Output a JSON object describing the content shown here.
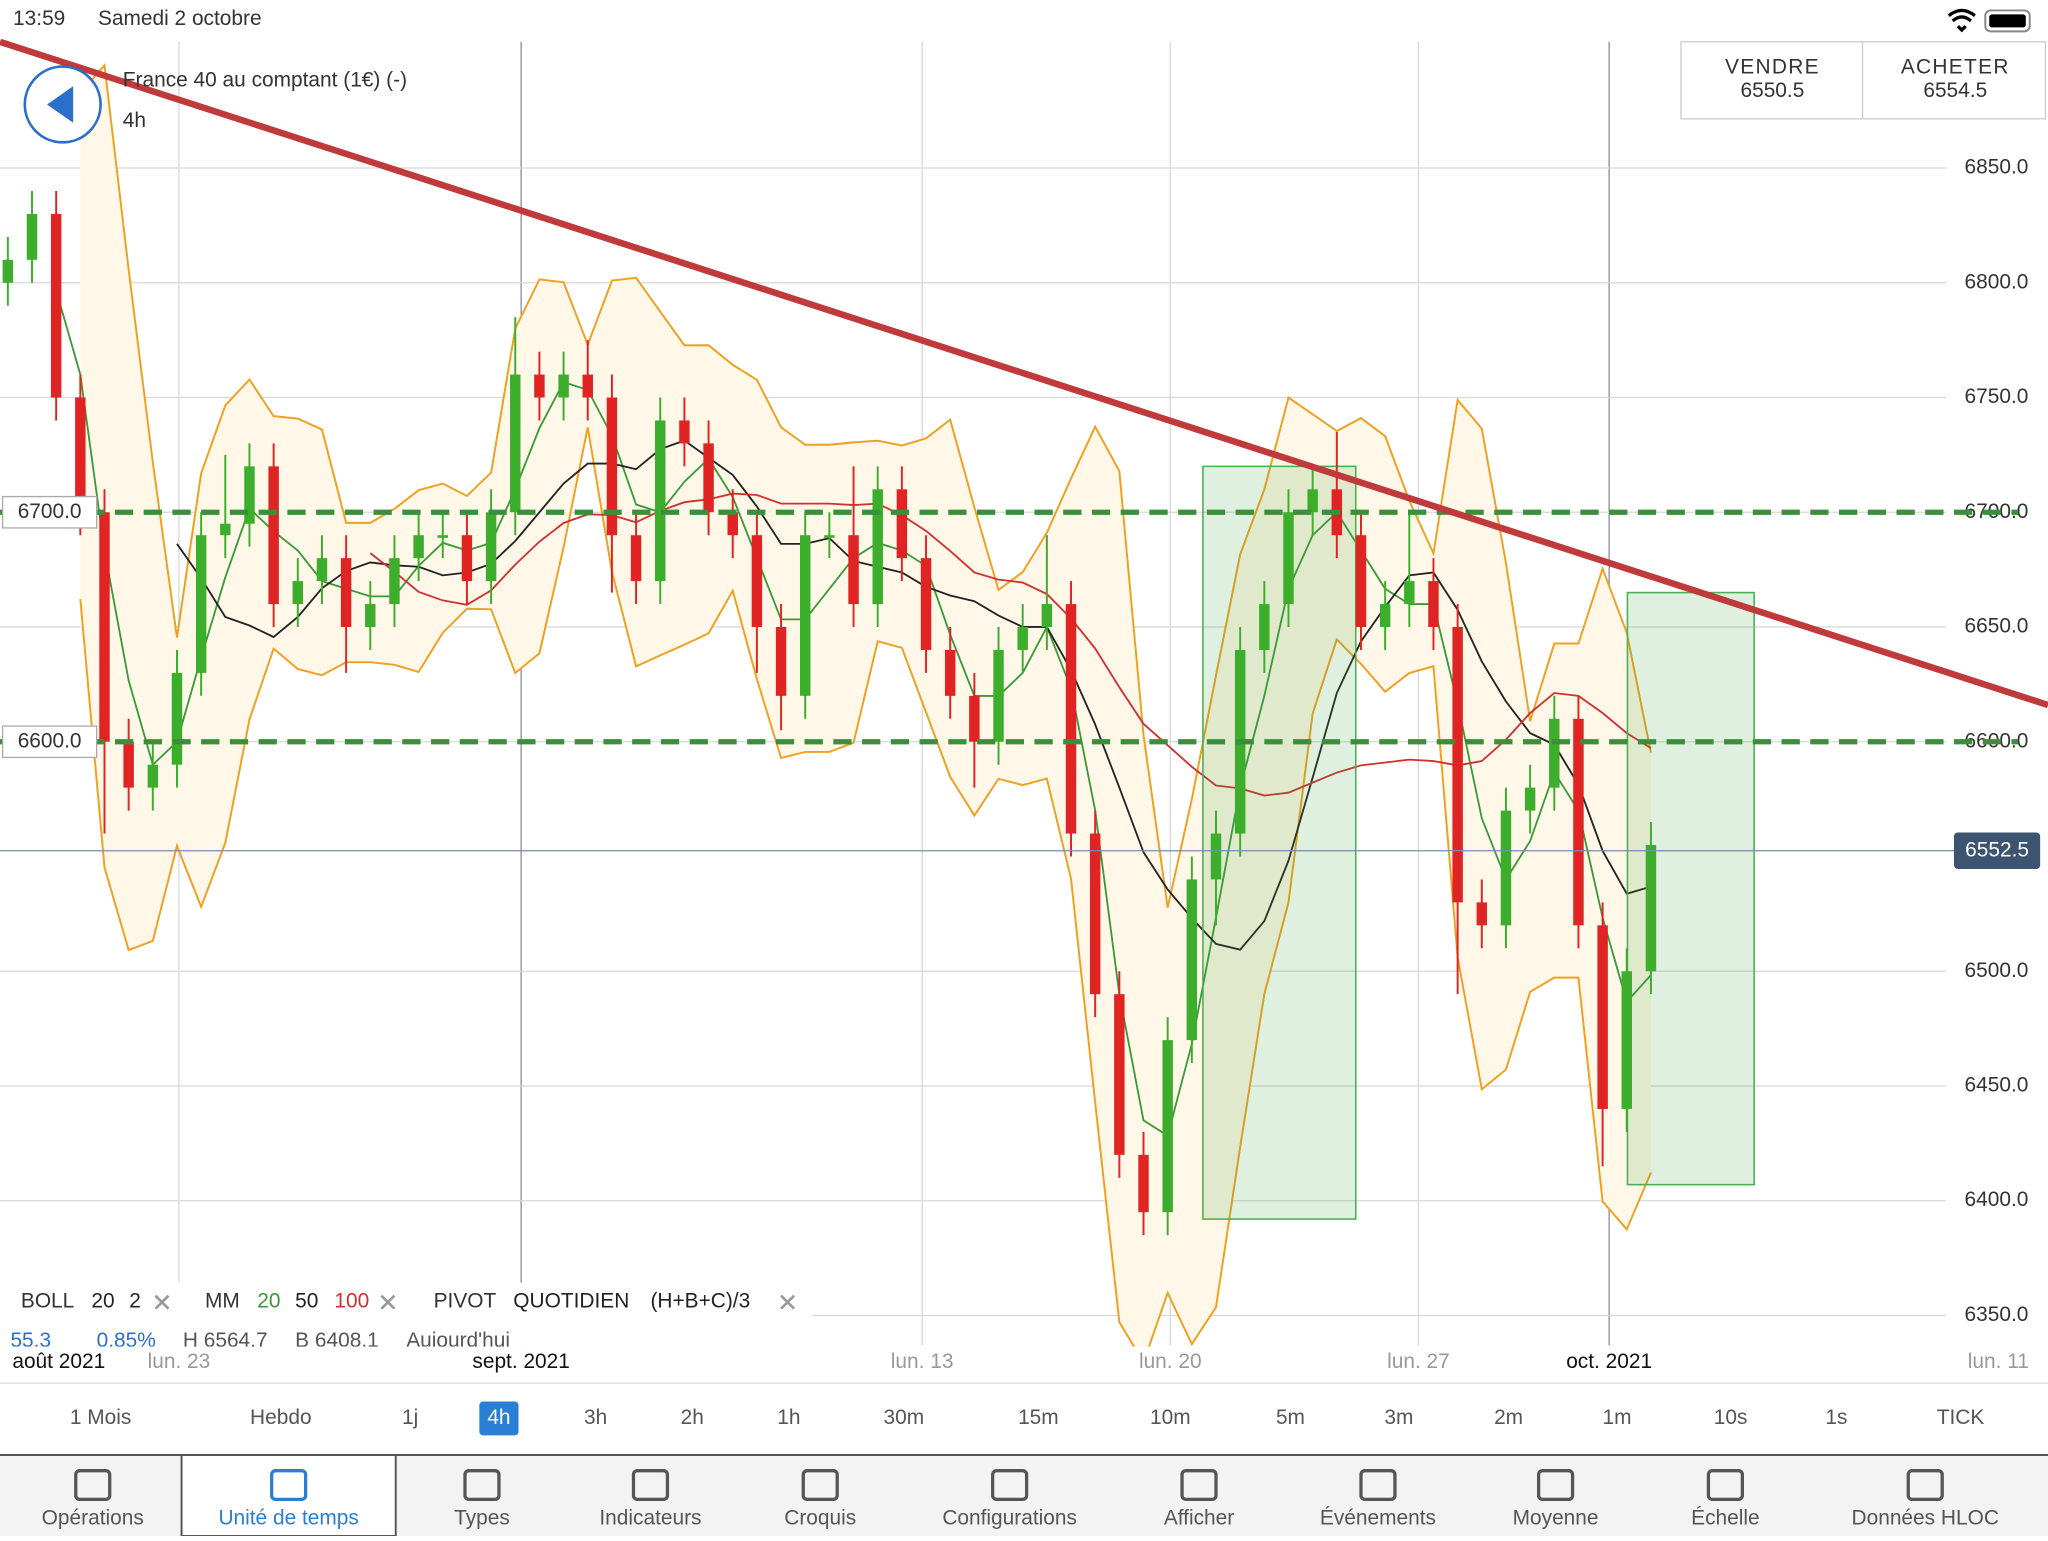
{
  "status_bar": {
    "time": "13:59",
    "date": "Samedi 2 octobre"
  },
  "header": {
    "instrument": "France 40 au comptant (1€) (-)",
    "timeframe": "4h"
  },
  "quote": {
    "sell_label": "VENDRE",
    "sell": 6550.5,
    "buy_label": "ACHETER",
    "buy": 6554.5
  },
  "chart_data": {
    "type": "candlestick",
    "open": [
      6800,
      6810,
      6830,
      6750,
      6700,
      6600,
      6580,
      6590,
      6630,
      6690,
      6695,
      6720,
      6660,
      6670,
      6680,
      6650,
      6660,
      6680,
      6690,
      6690,
      6670,
      6700,
      6760,
      6750,
      6760,
      6750,
      6690,
      6670,
      6740,
      6730,
      6700,
      6690,
      6650,
      6620,
      6690,
      6690,
      6660,
      6710,
      6680,
      6640,
      6620,
      6600,
      6640,
      6650,
      6660,
      6560,
      6490,
      6420,
      6395,
      6470,
      6540,
      6560,
      6640,
      6660,
      6700,
      6710,
      6690,
      6650,
      6660,
      6670,
      6650,
      6530,
      6520,
      6570,
      6580,
      6610,
      6520,
      6440,
      6500
    ],
    "high": [
      6820,
      6840,
      6840,
      6760,
      6710,
      6610,
      6600,
      6640,
      6700,
      6725,
      6730,
      6730,
      6680,
      6690,
      6690,
      6670,
      6690,
      6700,
      6700,
      6700,
      6710,
      6785,
      6770,
      6770,
      6775,
      6760,
      6700,
      6750,
      6750,
      6740,
      6710,
      6700,
      6660,
      6700,
      6700,
      6720,
      6720,
      6720,
      6690,
      6650,
      6630,
      6650,
      6660,
      6690,
      6670,
      6570,
      6500,
      6430,
      6480,
      6550,
      6570,
      6650,
      6670,
      6710,
      6720,
      6735,
      6700,
      6670,
      6700,
      6680,
      6660,
      6540,
      6580,
      6590,
      6620,
      6620,
      6530,
      6510,
      6565
    ],
    "low": [
      6790,
      6800,
      6740,
      6690,
      6560,
      6570,
      6570,
      6580,
      6620,
      6680,
      6685,
      6650,
      6650,
      6660,
      6630,
      6640,
      6650,
      6670,
      6680,
      6660,
      6660,
      6690,
      6740,
      6740,
      6740,
      6665,
      6660,
      6660,
      6720,
      6690,
      6680,
      6630,
      6605,
      6610,
      6680,
      6650,
      6650,
      6670,
      6630,
      6610,
      6580,
      6590,
      6630,
      6640,
      6550,
      6480,
      6410,
      6385,
      6385,
      6460,
      6520,
      6550,
      6630,
      6650,
      6690,
      6680,
      6640,
      6640,
      6650,
      6640,
      6490,
      6510,
      6510,
      6560,
      6570,
      6510,
      6415,
      6430,
      6490
    ],
    "close": [
      6810,
      6830,
      6750,
      6700,
      6600,
      6580,
      6590,
      6630,
      6690,
      6695,
      6720,
      6660,
      6670,
      6680,
      6650,
      6660,
      6680,
      6690,
      6690,
      6670,
      6700,
      6760,
      6750,
      6760,
      6750,
      6690,
      6670,
      6740,
      6730,
      6700,
      6690,
      6650,
      6620,
      6690,
      6690,
      6660,
      6710,
      6680,
      6640,
      6620,
      6600,
      6640,
      6650,
      6660,
      6560,
      6490,
      6420,
      6395,
      6470,
      6540,
      6560,
      6640,
      6660,
      6700,
      6710,
      6690,
      6650,
      6660,
      6670,
      6650,
      6530,
      6520,
      6570,
      6580,
      6610,
      6520,
      6440,
      6500,
      6555
    ],
    "up_color": "#3cae2c",
    "down_color": "#e02424",
    "ylim": [
      6337,
      6905
    ],
    "yticks": [
      {
        "value": 6350,
        "label": "6350.0"
      },
      {
        "value": 6400,
        "label": "6400.0"
      },
      {
        "value": 6450,
        "label": "6450.0"
      },
      {
        "value": 6500,
        "label": "6500.0"
      },
      {
        "value": 6600,
        "label": "6600.0"
      },
      {
        "value": 6650,
        "label": "6650.0"
      },
      {
        "value": 6700,
        "label": "6700.0"
      },
      {
        "value": 6750,
        "label": "6750.0"
      },
      {
        "value": 6800,
        "label": "6800.0"
      },
      {
        "value": 6850,
        "label": "6850.0"
      }
    ],
    "x_labels": [
      "août 2021",
      "lun. 23",
      "sept. 2021",
      "lun. 13",
      "lun. 20",
      "lun. 27",
      "oct. 2021",
      "lun. 11"
    ],
    "levels": [
      {
        "value": 6700,
        "label": "6700.0"
      },
      {
        "value": 6600,
        "label": "6600.0"
      }
    ],
    "last_price": 6552.5,
    "trendline": {
      "start": 6905,
      "end": 6616,
      "color": "#c0393b"
    },
    "zones": [
      {
        "top": 6720,
        "bottom": 6392
      },
      {
        "top": 6665,
        "bottom": 6407
      }
    ]
  },
  "indicators": [
    {
      "name": "BOLL",
      "params": [
        20,
        2
      ],
      "colors": [
        "#f0a020"
      ]
    },
    {
      "name": "MM",
      "params": [
        20,
        50,
        100
      ],
      "colors": [
        "#3a9a3a",
        "#222222",
        "#d03030"
      ]
    },
    {
      "name": "PIVOT",
      "params": [
        "QUOTIDIEN",
        "(H+B+C)/3"
      ]
    }
  ],
  "info": [
    55.3,
    "0.85%",
    "H 6564.7",
    "B 6408.1",
    "Aujourd'hui"
  ],
  "timeframes": [
    "1 Mois",
    "Hebdo",
    "1j",
    "4h",
    "3h",
    "2h",
    "1h",
    "30m",
    "15m",
    "10m",
    "5m",
    "3m",
    "2m",
    "1m",
    "10s",
    "1s",
    "TICK"
  ],
  "selected_timeframe": 3,
  "tabs": [
    "Opérations",
    "Unité de temps",
    "Types",
    "Indicateurs",
    "Croquis",
    "Configurations",
    "Afficher",
    "Événements",
    "Moyenne",
    "Échelle",
    "Données HLOC"
  ],
  "selected_tab": 1
}
